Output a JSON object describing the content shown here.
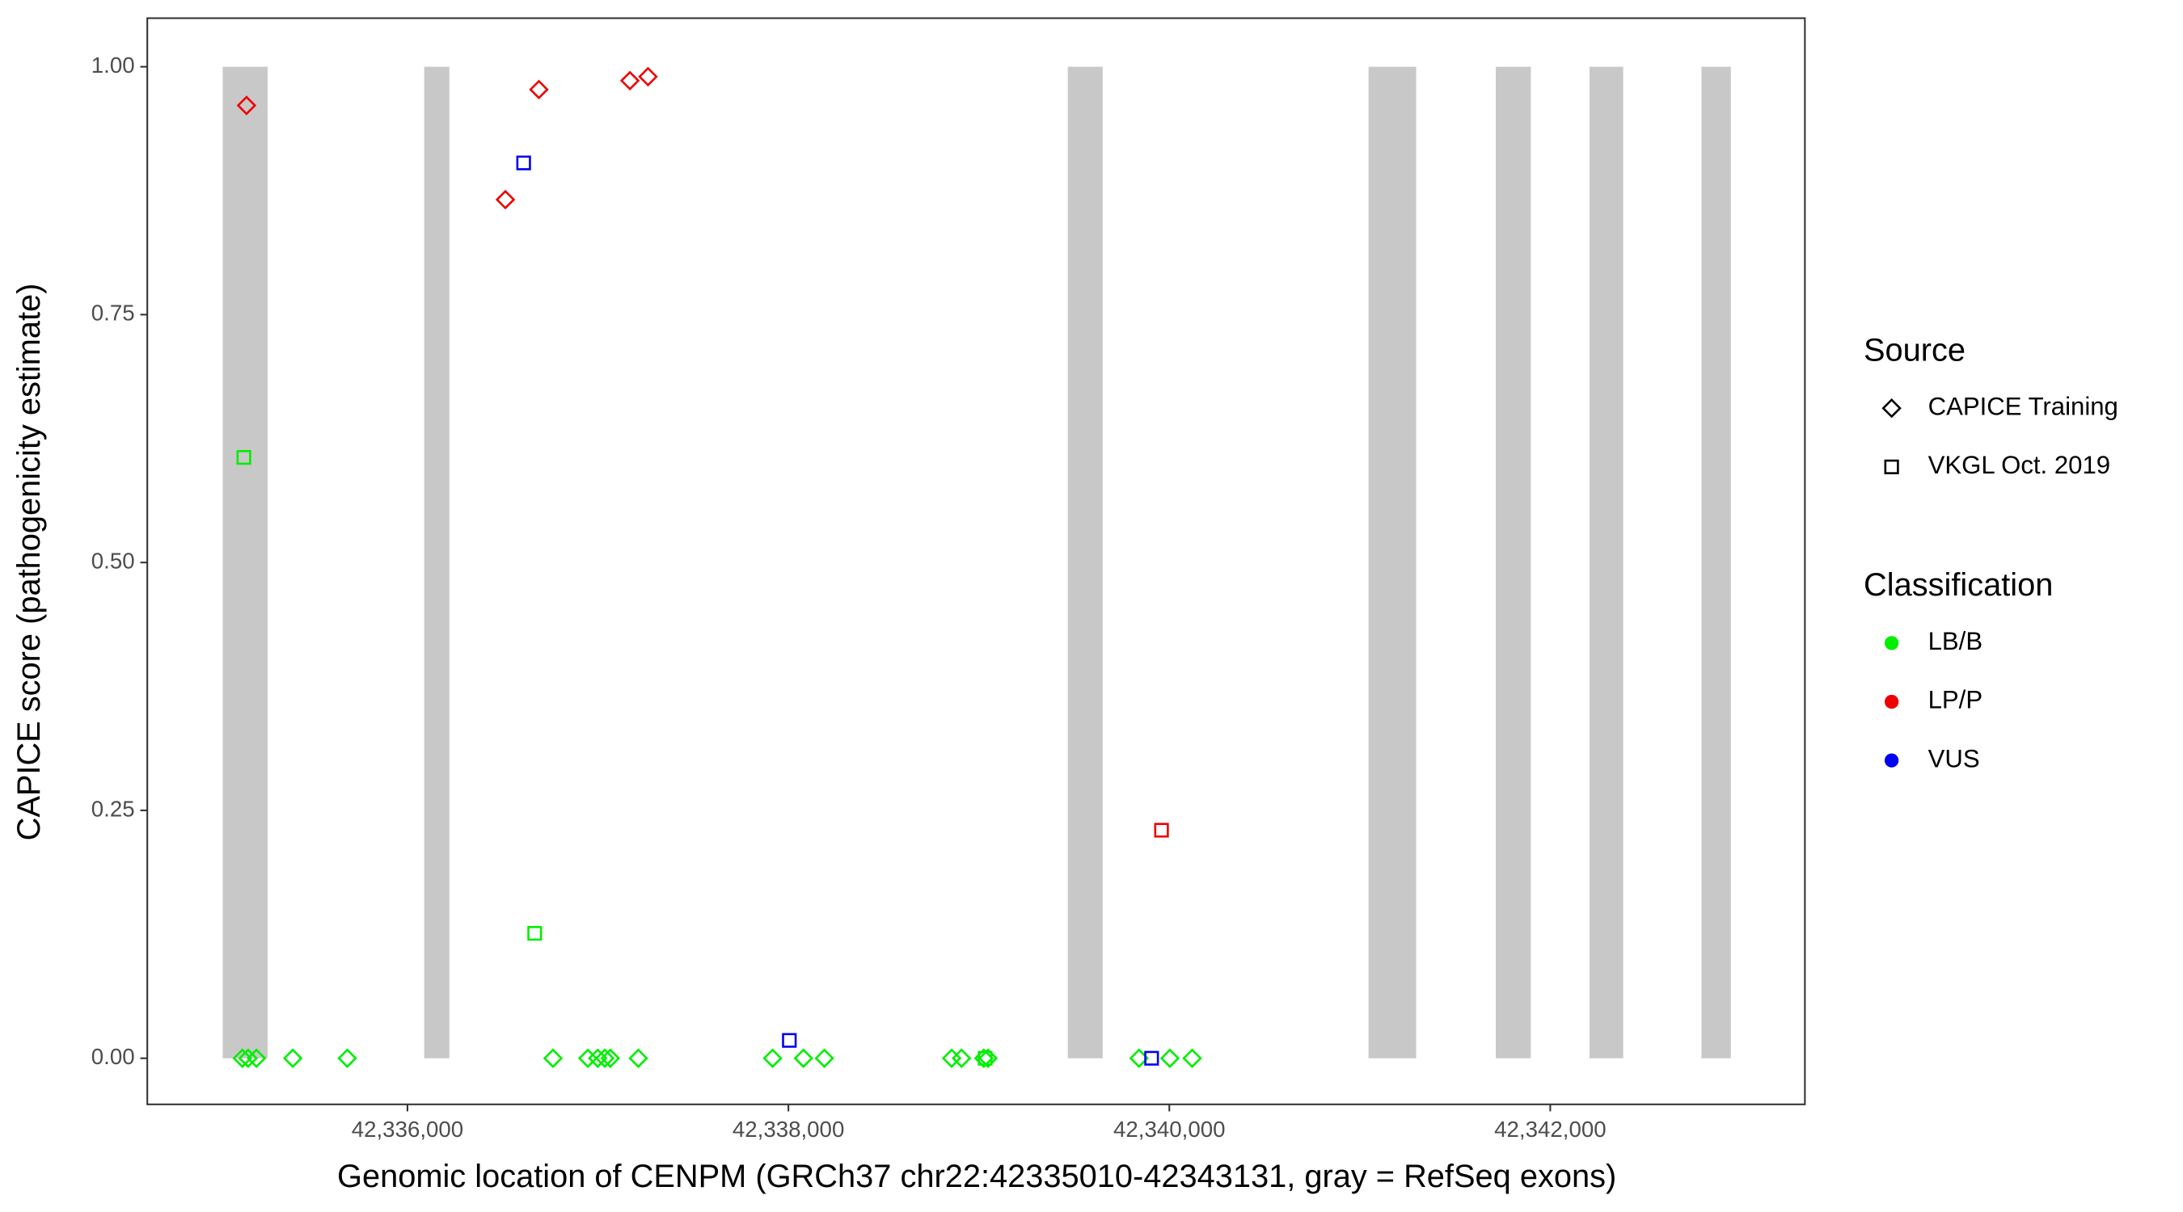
{
  "chart_data": {
    "type": "scatter",
    "x_label": "Genomic location of CENPM (GRCh37 chr22:42335010-42343131, gray = RefSeq exons)",
    "y_label": "CAPICE score (pathogenicity estimate)",
    "xlim": [
      42334634,
      42343337
    ],
    "ylim": [
      -0.0465,
      1.049
    ],
    "xticks": [
      {
        "value": 42336000,
        "label": "42,336,000"
      },
      {
        "value": 42338000,
        "label": "42,338,000"
      },
      {
        "value": 42340000,
        "label": "42,340,000"
      },
      {
        "value": 42342000,
        "label": "42,342,000"
      }
    ],
    "yticks": [
      {
        "value": 0,
        "label": "0.00"
      },
      {
        "value": 0.25,
        "label": "0.25"
      },
      {
        "value": 0.5,
        "label": "0.50"
      },
      {
        "value": 0.75,
        "label": "0.75"
      },
      {
        "value": 1,
        "label": "1.00"
      }
    ],
    "exon_color": "#c8c8c8",
    "exon_y": [
      0,
      1
    ],
    "exons": [
      [
        42335030,
        42335266
      ],
      [
        42336088,
        42336220
      ],
      [
        42339467,
        42339650
      ],
      [
        42341046,
        42341296
      ],
      [
        42341714,
        42341898
      ],
      [
        42342206,
        42342383
      ],
      [
        42342794,
        42342948
      ]
    ],
    "legends": {
      "source": {
        "title": "Source",
        "items": [
          {
            "label": "CAPICE Training",
            "shape": "diamond"
          },
          {
            "label": "VKGL Oct. 2019",
            "shape": "square"
          }
        ]
      },
      "classification": {
        "title": "Classification",
        "items": [
          {
            "label": "LB/B",
            "color": "#00ee00"
          },
          {
            "label": "LP/P",
            "color": "#ee0000"
          },
          {
            "label": "VUS",
            "color": "#0000ee"
          }
        ]
      }
    },
    "series": [
      {
        "source": 0,
        "classification": 1,
        "x": [
          42335155,
          42336514,
          42336690,
          42337168,
          42337263
        ],
        "values": [
          0.961,
          0.866,
          0.977,
          0.986,
          0.99
        ]
      },
      {
        "source": 0,
        "classification": 0,
        "x": [
          42335133,
          42335163,
          42335207,
          42335398,
          42335684,
          42336764,
          42336947,
          42336999,
          42337036,
          42337065,
          42337212,
          42337917,
          42338079,
          42338189,
          42338857,
          42338909,
          42339026,
          42339048,
          42339841,
          42340003,
          42340120
        ],
        "values": [
          0,
          0,
          0,
          0,
          0,
          0,
          0,
          0,
          0,
          0,
          0,
          0,
          0,
          0,
          0,
          0,
          0,
          0,
          0,
          0,
          0
        ]
      },
      {
        "source": 1,
        "classification": 2,
        "x": [
          42336610,
          42338005,
          42339907
        ],
        "values": [
          0.903,
          0.018,
          0
        ]
      },
      {
        "source": 1,
        "classification": 0,
        "x": [
          42335141,
          42336668,
          42339033
        ],
        "values": [
          0.606,
          0.126,
          0
        ]
      },
      {
        "source": 1,
        "classification": 1,
        "x": [
          42339959
        ],
        "values": [
          0.23
        ]
      }
    ]
  }
}
